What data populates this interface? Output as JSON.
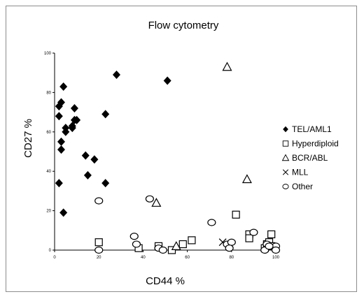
{
  "chart_data": {
    "type": "scatter",
    "title": "Flow cytometry",
    "xlabel": "CD44 %",
    "ylabel": "CD27 %",
    "xlim": [
      0,
      100
    ],
    "ylim": [
      0,
      100
    ],
    "x_ticks": [
      "0",
      "20",
      "40",
      "60",
      "80",
      "100"
    ],
    "y_ticks": [
      "0",
      "20",
      "40",
      "60",
      "80",
      "100"
    ],
    "grid": false,
    "legend_position": "right",
    "series": [
      {
        "name": "TEL/AML1",
        "marker": "filled-diamond",
        "x": [
          2,
          3,
          2,
          3,
          4,
          5,
          5,
          4,
          8,
          9,
          10,
          8,
          9,
          14,
          15,
          18,
          23,
          23,
          28,
          51,
          3,
          2
        ],
        "y": [
          73,
          75,
          68,
          55,
          83,
          62,
          60,
          19,
          63,
          66,
          66,
          62,
          72,
          48,
          38,
          46,
          69,
          34,
          89,
          86,
          51,
          34
        ]
      },
      {
        "name": "Hyperdiploid",
        "marker": "open-square",
        "x": [
          20,
          38,
          47,
          53,
          58,
          62,
          82,
          88,
          88,
          95,
          96,
          97,
          98,
          98
        ],
        "y": [
          4,
          1,
          2,
          0,
          3,
          5,
          18,
          8,
          6,
          1,
          3,
          4,
          8,
          2
        ]
      },
      {
        "name": "BCR/ABL",
        "marker": "open-triangle",
        "x": [
          78,
          87,
          46,
          55
        ],
        "y": [
          93,
          36,
          24,
          2
        ]
      },
      {
        "name": "MLL",
        "marker": "x",
        "x": [
          76
        ],
        "y": [
          4
        ]
      },
      {
        "name": "Other",
        "marker": "open-circle",
        "x": [
          20,
          20,
          43,
          36,
          37,
          47,
          49,
          71,
          78,
          80,
          79,
          90,
          96,
          100,
          95,
          97,
          100
        ],
        "y": [
          25,
          0,
          26,
          7,
          3,
          1,
          0,
          14,
          3,
          4,
          1,
          9,
          3,
          2,
          0,
          2,
          0
        ]
      }
    ]
  }
}
